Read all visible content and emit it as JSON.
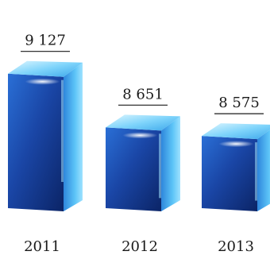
{
  "chart_data": {
    "type": "bar",
    "categories": [
      "2011",
      "2012",
      "2013"
    ],
    "values": [
      9127,
      8651,
      8575
    ],
    "value_labels": [
      "9 127",
      "8 651",
      "8 575"
    ],
    "title": "",
    "xlabel": "",
    "ylabel": "",
    "ylim": [
      8400,
      9200
    ],
    "grid": false,
    "legend": "none",
    "style": "3d-box",
    "colors": {
      "front_top": "#1f4fae",
      "front_bottom": "#0d2a73",
      "side_light": "#7fd3ff",
      "side_dark": "#1e73cf",
      "top_light": "#bfeeff",
      "top_dark": "#4bb8f4",
      "text": "#1a1a1a"
    }
  }
}
